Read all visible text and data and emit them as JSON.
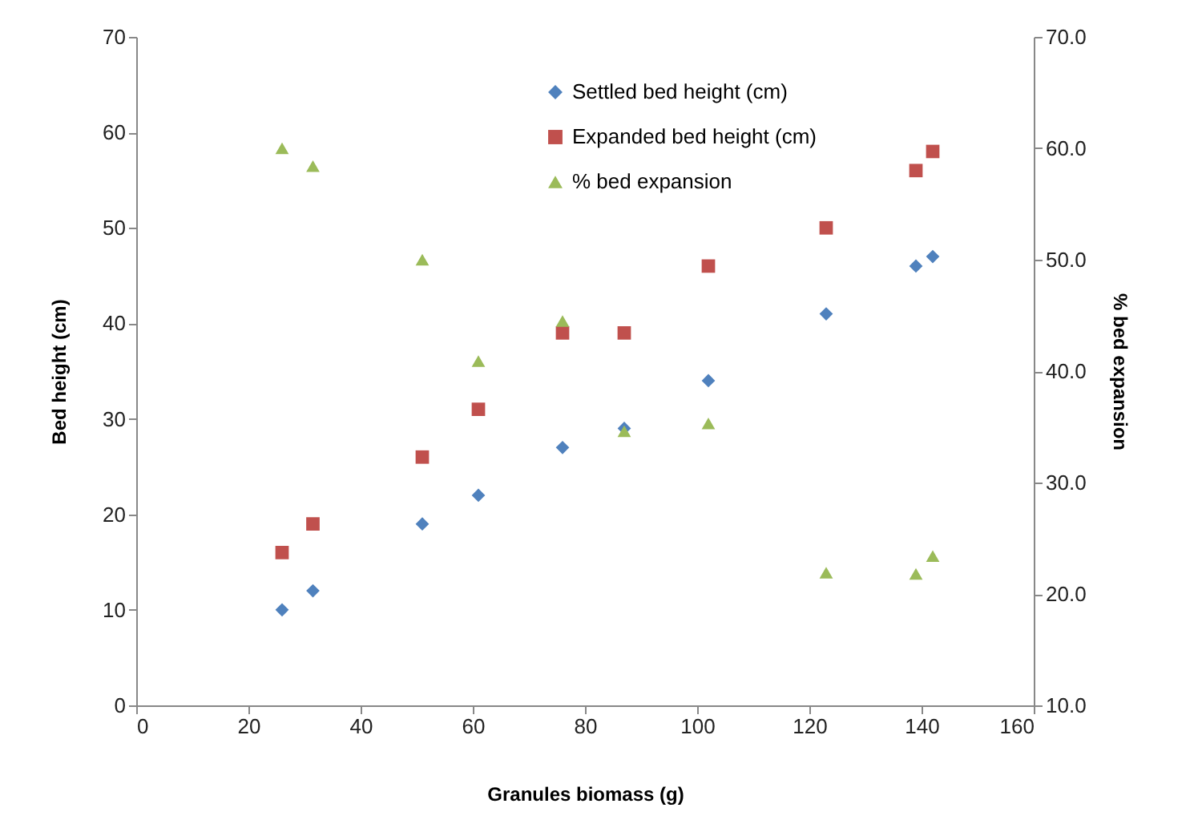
{
  "chart_data": {
    "type": "scatter",
    "xlabel": "Granules biomass (g)",
    "ylabel": "Bed height (cm)",
    "y2label": "% bed expansion",
    "x": [
      26,
      31.5,
      51,
      61,
      76,
      87,
      102,
      123,
      139,
      142
    ],
    "series": [
      {
        "name": "Settled bed height (cm)",
        "color": "#4f81bd",
        "marker": "diamond",
        "values": [
          10,
          12,
          19,
          22,
          27,
          29,
          34,
          41,
          46,
          47
        ]
      },
      {
        "name": "Expanded bed height (cm)",
        "color": "#c0504d",
        "marker": "square",
        "values": [
          16,
          19,
          26,
          31,
          39,
          39,
          46,
          50,
          56,
          58
        ]
      },
      {
        "name": "%  bed expansion",
        "color": "#9bbb59",
        "marker": "triangle",
        "axis": "y2",
        "values": [
          60.0,
          58.4,
          50.0,
          40.9,
          44.5,
          34.6,
          35.3,
          21.9,
          21.8,
          23.4
        ]
      }
    ],
    "xlim": [
      0,
      160
    ],
    "xticks": [
      0,
      20,
      40,
      60,
      80,
      100,
      120,
      140,
      160
    ],
    "ylim": [
      0,
      70
    ],
    "yticks": [
      0,
      10,
      20,
      30,
      40,
      50,
      60,
      70
    ],
    "y2lim": [
      10,
      70
    ],
    "y2ticks": [
      {
        "value": 10,
        "label": "10.0"
      },
      {
        "value": 20,
        "label": "20.0"
      },
      {
        "value": 30,
        "label": "30.0"
      },
      {
        "value": 40,
        "label": "40.0"
      },
      {
        "value": 50,
        "label": "50.0"
      },
      {
        "value": 60,
        "label": "60.0"
      },
      {
        "value": 70,
        "label": "70.0"
      }
    ],
    "legend": "top",
    "grid": false
  }
}
